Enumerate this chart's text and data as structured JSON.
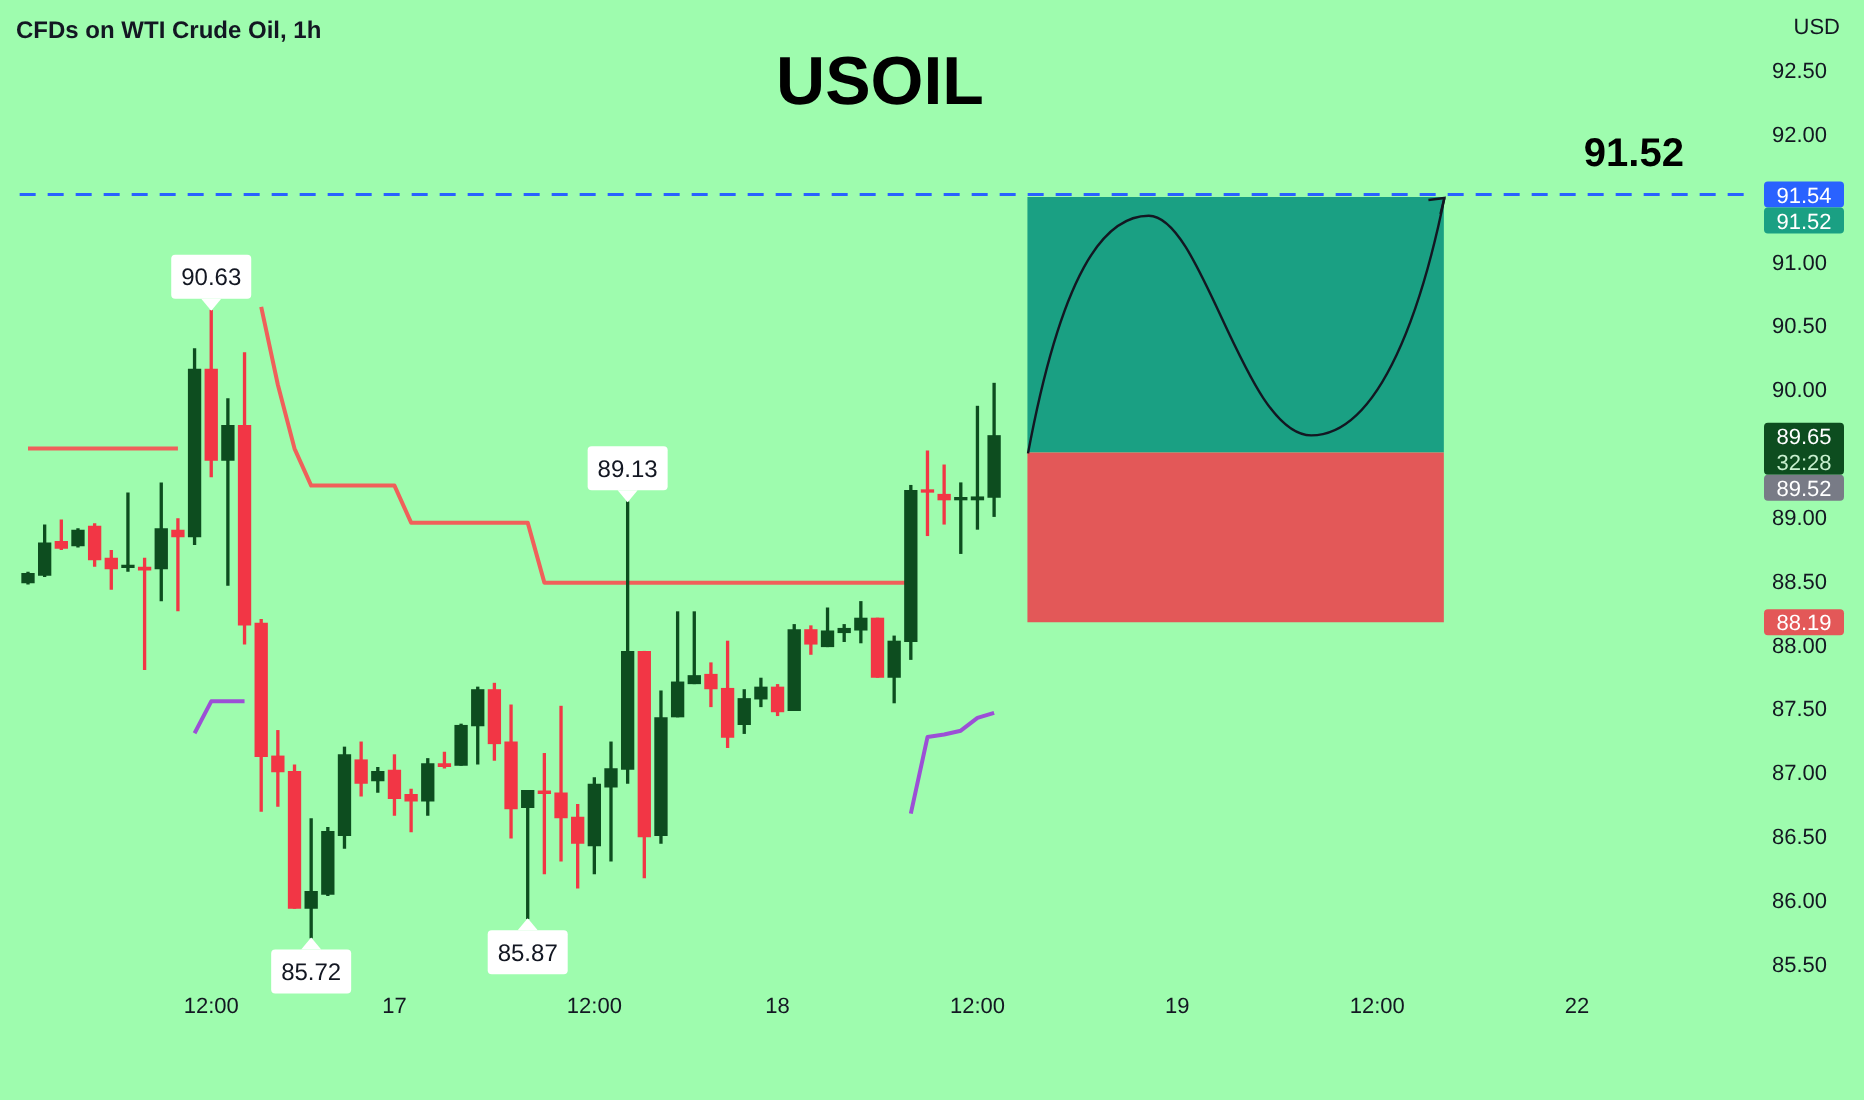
{
  "chart_data": {
    "type": "candlestick",
    "title": "USOIL",
    "subtitle": "CFDs on WTI Crude Oil, 1h",
    "ylabel": "USD",
    "categories": [
      null,
      null,
      null,
      null,
      null,
      null,
      null,
      null,
      null,
      null,
      null,
      "12:00",
      null,
      null,
      null,
      null,
      null,
      null,
      null,
      null,
      null,
      null,
      "17",
      null,
      null,
      null,
      null,
      null,
      null,
      null,
      null,
      null,
      null,
      null,
      "12:00",
      null,
      null,
      null,
      null,
      null,
      null,
      null,
      null,
      null,
      null,
      "18",
      null,
      null,
      null,
      null,
      null,
      null,
      null,
      null,
      null,
      null,
      null,
      "12:00",
      null,
      null,
      null,
      null,
      null,
      null,
      null,
      null,
      null,
      null,
      null,
      "19",
      null,
      null,
      null,
      null,
      null,
      null,
      null,
      null,
      null,
      null,
      null,
      "12:00",
      null,
      null,
      null,
      null,
      null,
      null,
      null,
      null,
      null,
      null,
      null,
      "22",
      null,
      null,
      null,
      null,
      null,
      null,
      null,
      null,
      null,
      null
    ],
    "ohlc": [
      [
        88.5,
        88.58,
        88.49,
        88.57
      ],
      [
        88.56,
        88.95,
        88.55,
        88.81
      ],
      [
        88.82,
        88.99,
        88.76,
        88.77
      ],
      [
        88.79,
        88.92,
        88.78,
        88.91
      ],
      [
        88.94,
        88.96,
        88.63,
        88.68
      ],
      [
        88.69,
        88.75,
        88.45,
        88.61
      ],
      [
        88.62,
        89.2,
        88.59,
        88.62
      ],
      [
        88.62,
        88.69,
        87.82,
        88.6
      ],
      [
        88.61,
        89.28,
        88.36,
        88.92
      ],
      [
        88.91,
        89.0,
        88.28,
        88.86
      ],
      [
        88.86,
        90.33,
        88.8,
        90.17
      ],
      [
        90.17,
        90.63,
        89.33,
        89.46
      ],
      [
        89.46,
        89.94,
        88.48,
        89.73
      ],
      [
        89.73,
        90.3,
        88.02,
        88.17
      ],
      [
        88.18,
        88.21,
        86.71,
        87.14
      ],
      [
        87.14,
        87.34,
        86.75,
        87.02
      ],
      [
        87.02,
        87.07,
        85.95,
        85.95
      ],
      [
        85.95,
        86.65,
        85.72,
        86.08
      ],
      [
        86.06,
        86.58,
        86.05,
        86.55
      ],
      [
        86.52,
        87.21,
        86.42,
        87.15
      ],
      [
        87.11,
        87.25,
        86.83,
        86.93
      ],
      [
        86.95,
        87.05,
        86.86,
        87.02
      ],
      [
        87.03,
        87.15,
        86.68,
        86.81
      ],
      [
        86.84,
        86.88,
        86.55,
        86.79
      ],
      [
        86.79,
        87.12,
        86.68,
        87.08
      ],
      [
        87.08,
        87.17,
        87.05,
        87.06
      ],
      [
        87.07,
        87.39,
        87.07,
        87.38
      ],
      [
        87.38,
        87.68,
        87.08,
        87.66
      ],
      [
        87.66,
        87.71,
        87.11,
        87.24
      ],
      [
        87.25,
        87.54,
        86.5,
        86.73
      ],
      [
        86.74,
        86.87,
        85.87,
        86.87
      ],
      [
        86.86,
        87.16,
        86.22,
        86.85
      ],
      [
        86.85,
        87.53,
        86.32,
        86.66
      ],
      [
        86.66,
        86.76,
        86.11,
        86.46
      ],
      [
        86.44,
        86.97,
        86.22,
        86.92
      ],
      [
        86.9,
        87.25,
        86.32,
        87.04
      ],
      [
        87.04,
        89.13,
        86.93,
        87.96
      ],
      [
        87.96,
        87.96,
        86.19,
        86.51
      ],
      [
        86.52,
        87.65,
        86.46,
        87.44
      ],
      [
        87.45,
        88.27,
        87.45,
        87.72
      ],
      [
        87.71,
        88.27,
        87.71,
        87.77
      ],
      [
        87.78,
        87.87,
        87.53,
        87.67
      ],
      [
        87.67,
        88.04,
        87.21,
        87.29
      ],
      [
        87.39,
        87.66,
        87.32,
        87.59
      ],
      [
        87.59,
        87.75,
        87.53,
        87.68
      ],
      [
        87.68,
        87.7,
        87.46,
        87.49
      ],
      [
        87.5,
        88.17,
        87.5,
        88.13
      ],
      [
        88.13,
        88.16,
        87.94,
        88.02
      ],
      [
        88.0,
        88.3,
        88.0,
        88.12
      ],
      [
        88.11,
        88.17,
        88.04,
        88.14
      ],
      [
        88.13,
        88.35,
        88.03,
        88.22
      ],
      [
        88.22,
        88.22,
        87.76,
        87.76
      ],
      [
        87.76,
        88.08,
        87.56,
        88.04
      ],
      [
        88.04,
        89.26,
        87.9,
        89.22
      ],
      [
        89.22,
        89.53,
        88.87,
        89.21
      ],
      [
        89.19,
        89.42,
        88.96,
        89.15
      ],
      [
        89.15,
        89.28,
        88.73,
        89.15
      ],
      [
        89.15,
        89.88,
        88.92,
        89.17
      ],
      [
        89.17,
        90.06,
        89.02,
        89.65
      ],
      null,
      null,
      null,
      null,
      null,
      null,
      null,
      null,
      null,
      null,
      null,
      null,
      null,
      null,
      null,
      null,
      null,
      null,
      null,
      null,
      null,
      null,
      null,
      null,
      null,
      null,
      null,
      null,
      null,
      null,
      null,
      null,
      null,
      null,
      null,
      null,
      null,
      null,
      null,
      null,
      null,
      null,
      null,
      null,
      null
    ],
    "series": [
      {
        "type": "line",
        "color": "#f0605a",
        "values": [
          89.55,
          89.55,
          89.55,
          89.55,
          89.55,
          89.55,
          89.55,
          89.55,
          89.55,
          89.55,
          null,
          null,
          null,
          null,
          90.66,
          90.05,
          89.55,
          89.26,
          89.26,
          89.26,
          89.26,
          89.26,
          89.26,
          88.97,
          88.97,
          88.97,
          88.97,
          88.97,
          88.97,
          88.97,
          88.97,
          88.5,
          88.5,
          88.5,
          88.5,
          88.5,
          88.5,
          88.5,
          88.5,
          88.5,
          88.5,
          88.5,
          88.5,
          88.5,
          88.5,
          88.5,
          88.5,
          88.5,
          88.5,
          88.5,
          88.5,
          88.5,
          88.5,
          88.5,
          null,
          null,
          null,
          null,
          null,
          null,
          null,
          null,
          null,
          null,
          null,
          null,
          null,
          null,
          null,
          null,
          null,
          null,
          null,
          null,
          null,
          null,
          null,
          null,
          null,
          null,
          null,
          null,
          null,
          null,
          null,
          null,
          null,
          null,
          null,
          null,
          null,
          null,
          null,
          null,
          null,
          null,
          null,
          null,
          null,
          null,
          null,
          null,
          null,
          null
        ]
      },
      {
        "type": "line",
        "color": "#9c4fd6",
        "values": [
          null,
          null,
          null,
          null,
          null,
          null,
          null,
          null,
          null,
          null,
          87.32,
          87.57,
          87.57,
          87.57,
          null,
          null,
          null,
          null,
          null,
          null,
          null,
          null,
          null,
          null,
          null,
          null,
          null,
          null,
          null,
          null,
          null,
          null,
          null,
          null,
          null,
          null,
          null,
          null,
          null,
          null,
          null,
          null,
          null,
          null,
          null,
          null,
          null,
          null,
          null,
          null,
          null,
          null,
          null,
          86.69,
          87.29,
          87.31,
          87.34,
          87.44,
          87.48,
          null,
          null,
          null,
          null,
          null,
          null,
          null,
          null,
          null,
          null,
          null,
          null,
          null,
          null,
          null,
          null,
          null,
          null,
          null,
          null,
          null,
          null,
          null,
          null,
          null,
          null,
          null,
          null,
          null,
          null,
          null,
          null,
          null,
          null,
          null,
          null,
          null,
          null,
          null,
          null,
          null,
          null,
          null,
          null,
          null
        ]
      }
    ],
    "ylim": [
      85.5,
      92.5
    ],
    "yticks": [
      {
        "value": 85.5,
        "label": "85.50"
      },
      {
        "value": 86,
        "label": "86.00"
      },
      {
        "value": 86.5,
        "label": "86.50"
      },
      {
        "value": 87,
        "label": "87.00"
      },
      {
        "value": 87.5,
        "label": "87.50"
      },
      {
        "value": 88,
        "label": "88.00"
      },
      {
        "value": 88.5,
        "label": "88.50"
      },
      {
        "value": 89,
        "label": "89.00"
      },
      {
        "value": 89.5,
        "label": null
      },
      {
        "value": 90,
        "label": "90.00"
      },
      {
        "value": 90.5,
        "label": "90.50"
      },
      {
        "value": 91,
        "label": "91.00"
      },
      {
        "value": 91.5,
        "label": null
      },
      {
        "value": 92,
        "label": "92.00"
      },
      {
        "value": 92.5,
        "label": "92.50"
      }
    ],
    "ref_lines": [
      {
        "axis": "y",
        "value": 91.54,
        "label": "91.54",
        "color": "#2962ff",
        "line_style": "dashed"
      }
    ],
    "bands": [
      {
        "axis": "y",
        "from": 89.52,
        "to": 91.52,
        "color": "#1aa083"
      },
      {
        "axis": "y",
        "from": 88.19,
        "to": 89.52,
        "color": "#e35858"
      }
    ],
    "annotations": [
      {
        "text": "90.63",
        "y": 90.63
      },
      {
        "text": "89.13",
        "y": 89.13
      },
      {
        "text": "85.72",
        "y": 85.72
      },
      {
        "text": "85.87",
        "y": 85.87
      },
      "91.52",
      "89.65",
      "32:28",
      "89.52",
      "91.52",
      "88.19"
    ],
    "grid": false,
    "legend": false
  }
}
